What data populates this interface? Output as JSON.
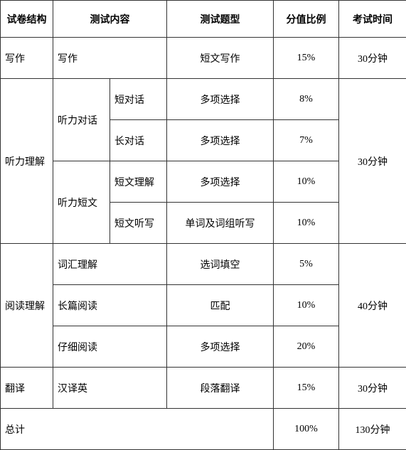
{
  "headers": {
    "structure": "试卷结构",
    "content": "测试内容",
    "type": "测试题型",
    "score": "分值比例",
    "time": "考试时间"
  },
  "rows": {
    "writing": {
      "structure": "写作",
      "content": "写作",
      "type": "短文写作",
      "score": "15%",
      "time": "30分钟"
    },
    "listening": {
      "structure": "听力理解",
      "dialog": "听力对话",
      "passage": "听力短文",
      "short_dialog": {
        "content": "短对话",
        "type": "多项选择",
        "score": "8%"
      },
      "long_dialog": {
        "content": "长对话",
        "type": "多项选择",
        "score": "7%"
      },
      "passage_comp": {
        "content": "短文理解",
        "type": "多项选择",
        "score": "10%"
      },
      "dictation": {
        "content": "短文听写",
        "type": "单词及词组听写",
        "score": "10%"
      },
      "time": "30分钟"
    },
    "reading": {
      "structure": "阅读理解",
      "vocab": {
        "content": "词汇理解",
        "type": "选词填空",
        "score": "5%"
      },
      "long": {
        "content": "长篇阅读",
        "type": "匹配",
        "score": "10%"
      },
      "careful": {
        "content": "仔细阅读",
        "type": "多项选择",
        "score": "20%"
      },
      "time": "40分钟"
    },
    "translation": {
      "structure": "翻译",
      "content": "汉译英",
      "type": "段落翻译",
      "score": "15%",
      "time": "30分钟"
    },
    "total": {
      "label": "总计",
      "score": "100%",
      "time": "130分钟"
    }
  }
}
